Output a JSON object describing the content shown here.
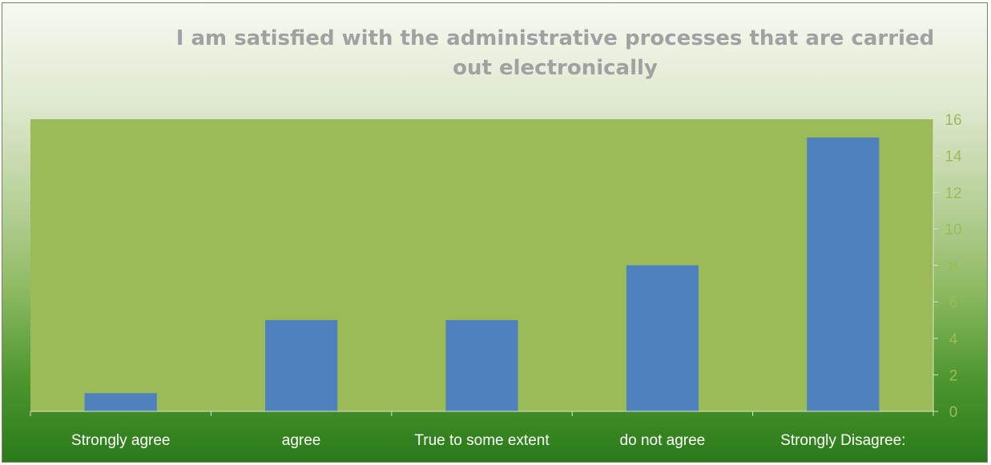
{
  "chart_data": {
    "type": "bar",
    "title": "I am satisfied with the administrative processes that are carried out electronically",
    "categories": [
      "Strongly agree",
      "agree",
      "True to some extent",
      "do not agree",
      "Strongly Disagree:"
    ],
    "series": [
      {
        "values": [
          1,
          5,
          5,
          8,
          15
        ]
      }
    ],
    "ylim": [
      0,
      16
    ],
    "yticks": [
      "0",
      "2",
      "4",
      "6",
      "8",
      "10",
      "12",
      "14",
      "16"
    ],
    "y_axis_side": "right",
    "grid": false,
    "legend": "none",
    "colors": {
      "bar": "#4f81bd",
      "plot_area": "#9bbb59",
      "tick_label": "#9bbb59",
      "category_label": "#ffffff",
      "title": "#a1a1a1"
    }
  }
}
